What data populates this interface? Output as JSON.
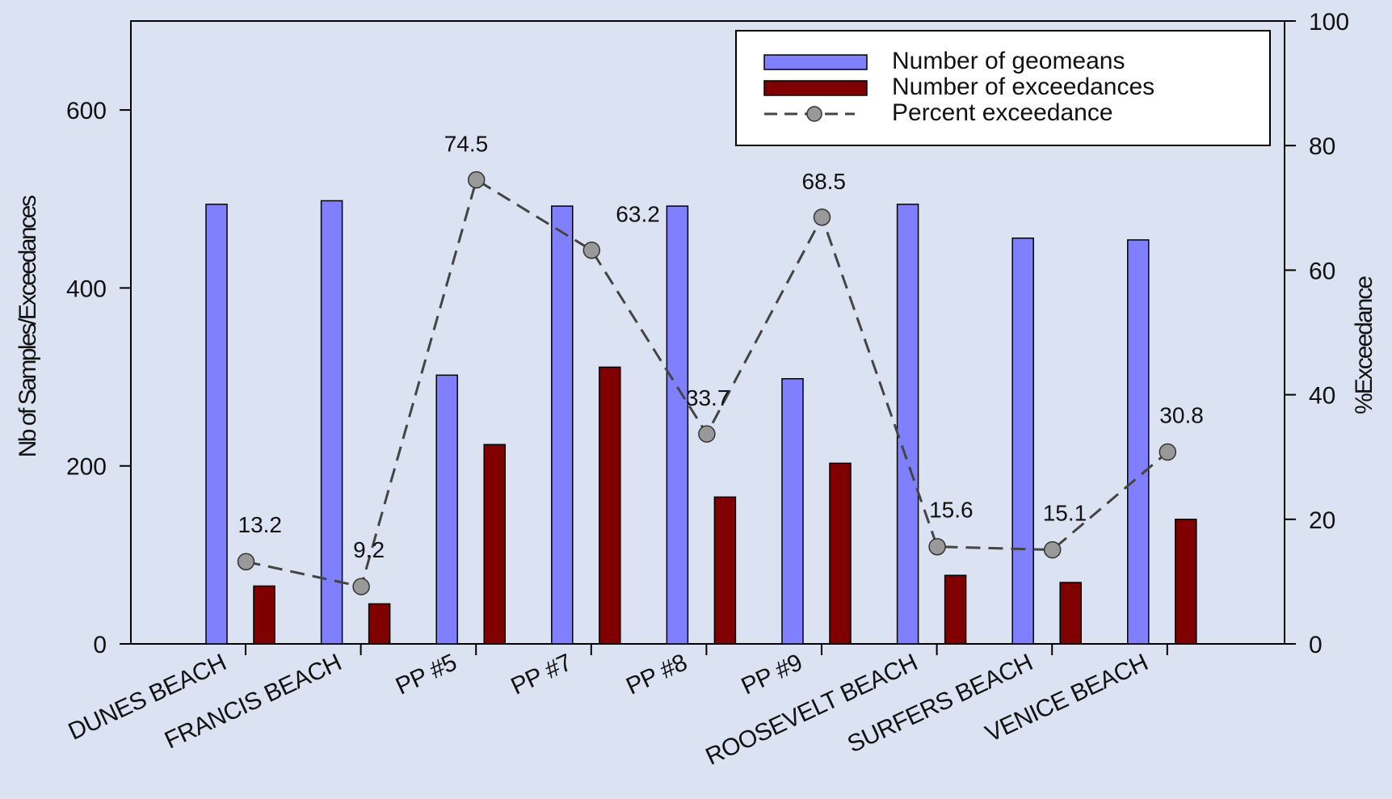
{
  "chart_data": {
    "type": "bar",
    "categories": [
      "DUNES BEACH",
      "FRANCIS BEACH",
      "PP #5",
      "PP #7",
      "PP #8",
      "PP #9",
      "ROOSEVELT BEACH",
      "SURFERS BEACH",
      "VENICE BEACH"
    ],
    "series": [
      {
        "name": "Number of geomeans",
        "kind": "bar",
        "axis": "left",
        "color": "#8080ff",
        "values": [
          494,
          498,
          302,
          492,
          492,
          298,
          494,
          456,
          454
        ]
      },
      {
        "name": "Number of exceedances",
        "kind": "bar",
        "axis": "left",
        "color": "#800000",
        "values": [
          65,
          45,
          224,
          311,
          165,
          203,
          77,
          69,
          140
        ]
      },
      {
        "name": "Percent exceedance",
        "kind": "line",
        "axis": "right",
        "color": "#444444",
        "marker_color": "#999999",
        "values": [
          13.2,
          9.2,
          74.5,
          63.2,
          33.7,
          68.5,
          15.6,
          15.1,
          30.8
        ],
        "labels": [
          "13.2",
          "9.2",
          "74.5",
          "63.2",
          "33.7",
          "68.5",
          "15.6",
          "15.1",
          "30.8"
        ]
      }
    ],
    "ylabel": "Nb of Samples/Exceedances",
    "y2label": "%Exceedance",
    "ylim": [
      0,
      700
    ],
    "yticks": [
      0,
      200,
      400,
      600
    ],
    "y2lim": [
      0,
      100
    ],
    "y2ticks": [
      0,
      20,
      40,
      60,
      80,
      100
    ],
    "legend": {
      "position": "top-right",
      "entries": [
        "Number of geomeans",
        "Number of exceedances",
        "Percent exceedance"
      ]
    },
    "grid": false
  }
}
